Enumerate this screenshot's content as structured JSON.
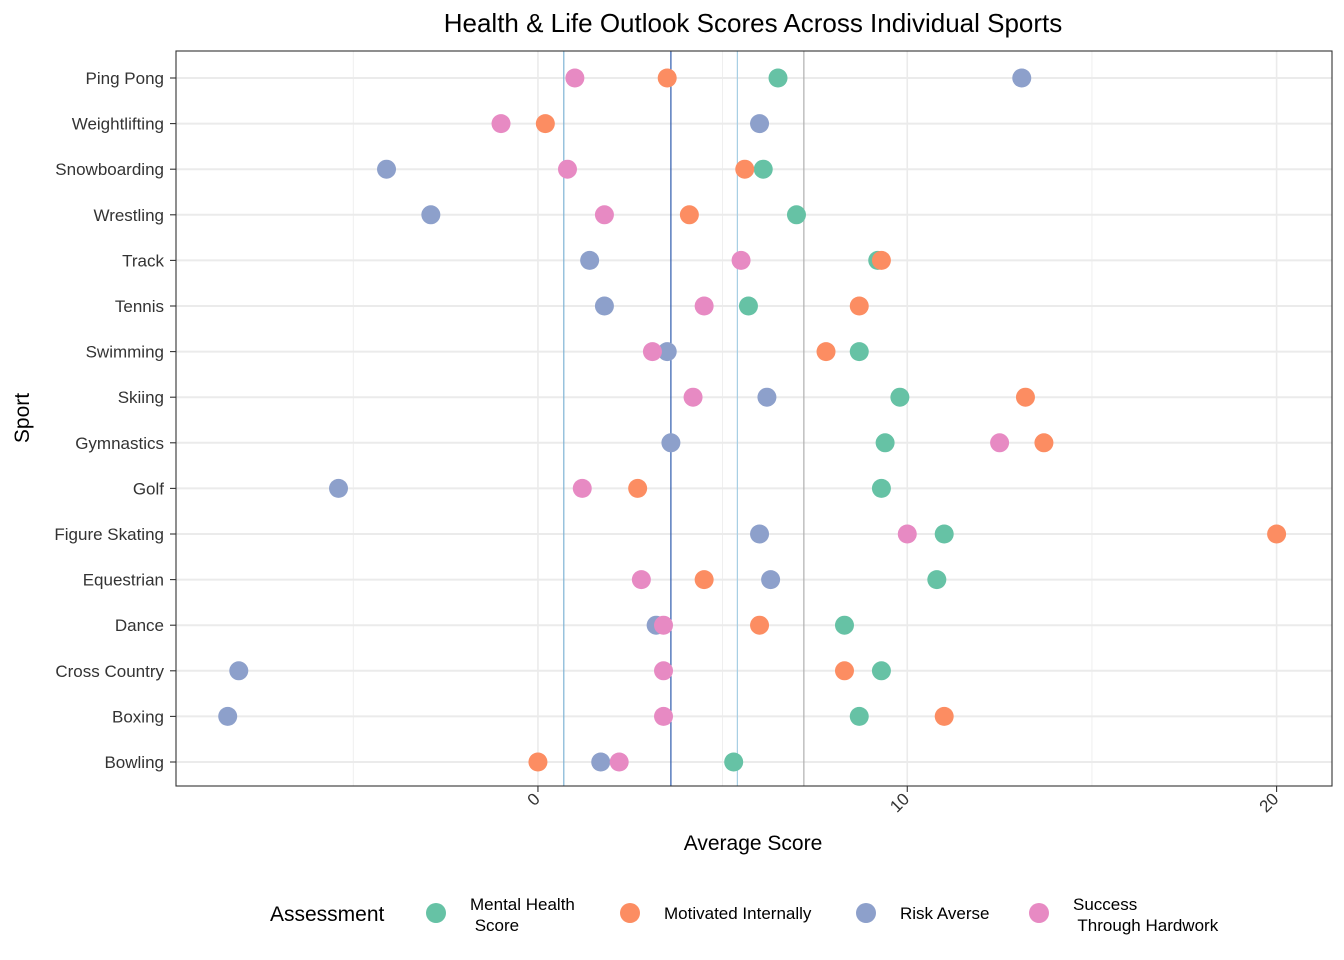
{
  "chart_data": {
    "type": "scatter",
    "title": "Health & Life Outlook Scores Across Individual Sports",
    "xlabel": "Average Score",
    "ylabel": "Sport",
    "xlim": [
      -9.8,
      21.5
    ],
    "x_ticks": [
      0,
      10,
      20
    ],
    "x_minor_ticks": [
      -5,
      5,
      15
    ],
    "grid": true,
    "categories": [
      "Bowling",
      "Boxing",
      "Cross Country",
      "Dance",
      "Equestrian",
      "Figure Skating",
      "Golf",
      "Gymnastics",
      "Skiing",
      "Swimming",
      "Tennis",
      "Track",
      "Wrestling",
      "Snowboarding",
      "Weightlifting",
      "Ping Pong"
    ],
    "series": [
      {
        "name": "Mental Health\n Score",
        "color": "#66C2A5",
        "values": [
          5.3,
          8.7,
          9.3,
          8.3,
          10.8,
          11.0,
          9.3,
          9.4,
          9.8,
          8.7,
          5.7,
          9.2,
          7.0,
          6.1,
          null,
          6.5
        ]
      },
      {
        "name": "Motivated Internally",
        "color": "#FC8D62",
        "values": [
          0.0,
          11.0,
          8.3,
          6.0,
          4.5,
          20.0,
          2.7,
          13.7,
          13.2,
          7.8,
          8.7,
          9.3,
          4.1,
          5.6,
          0.2,
          3.5
        ]
      },
      {
        "name": "Risk Averse",
        "color": "#8DA0CB",
        "values": [
          1.7,
          -8.4,
          -8.1,
          3.2,
          6.3,
          6.0,
          -5.4,
          3.6,
          6.2,
          3.5,
          1.8,
          1.4,
          -2.9,
          -4.1,
          6.0,
          13.1
        ]
      },
      {
        "name": "Success\n Through Hardwork",
        "color": "#E78AC3",
        "values": [
          2.2,
          3.4,
          3.4,
          3.4,
          2.8,
          10.0,
          1.2,
          12.5,
          4.2,
          3.1,
          4.5,
          5.5,
          1.8,
          0.8,
          -1.0,
          1.0
        ]
      }
    ],
    "reference_lines": [
      {
        "x": 0.7,
        "color": "#7FB3D5"
      },
      {
        "x": 3.6,
        "color": "#2E5AAC"
      },
      {
        "x": 5.4,
        "color": "#A6CEE3"
      },
      {
        "x": 7.2,
        "color": "#B0B0B0"
      }
    ],
    "legend": {
      "title": "Assessment",
      "position": "bottom"
    }
  }
}
